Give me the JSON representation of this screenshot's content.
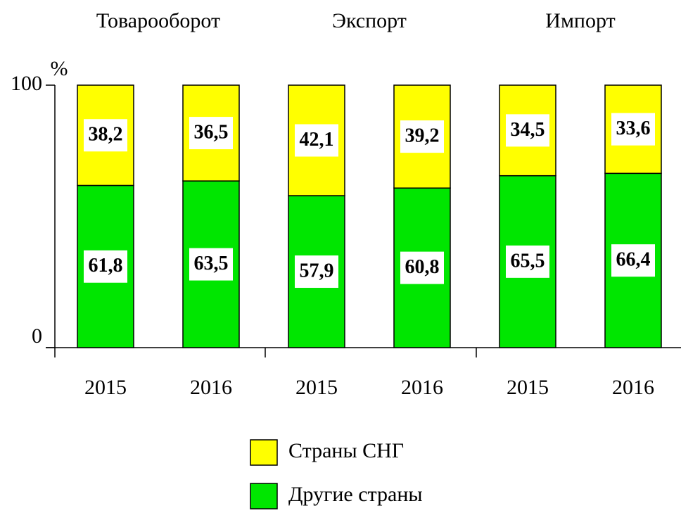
{
  "chart_data": {
    "type": "stacked_bar",
    "groups": [
      "Товарооборот",
      "Экспорт",
      "Импорт"
    ],
    "categories": [
      "2015",
      "2016",
      "2015",
      "2016",
      "2015",
      "2016"
    ],
    "y_label": "%",
    "ylim": [
      0,
      100
    ],
    "yticks": [
      0,
      100
    ],
    "series": [
      {
        "name": "Другие страны",
        "color": "#00e600",
        "values": [
          61.8,
          63.5,
          57.9,
          60.8,
          65.5,
          66.4
        ],
        "value_labels": [
          "61,8",
          "63,5",
          "57,9",
          "60,8",
          "65,5",
          "66,4"
        ]
      },
      {
        "name": "Страны СНГ",
        "color": "#ffff00",
        "values": [
          38.2,
          36.5,
          42.1,
          39.2,
          34.5,
          33.6
        ],
        "value_labels": [
          "38,2",
          "36,5",
          "42,1",
          "39,2",
          "34,5",
          "33,6"
        ]
      }
    ],
    "legend": "bottom"
  }
}
